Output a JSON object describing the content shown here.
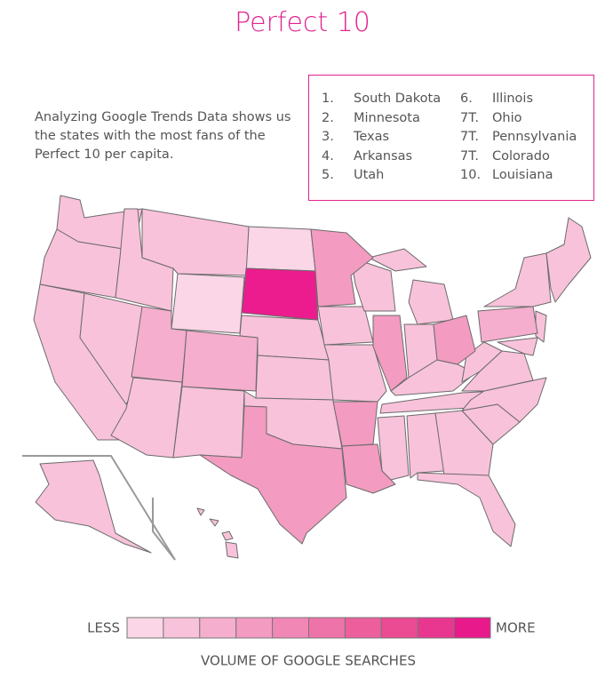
{
  "title": "Perfect 10",
  "description": "Analyzing Google Trends Data shows us the states with the most fans of the Perfect 10 per capita.",
  "ranking": [
    {
      "rank": "1.",
      "name": "South Dakota"
    },
    {
      "rank": "2.",
      "name": "Minnesota"
    },
    {
      "rank": "3.",
      "name": "Texas"
    },
    {
      "rank": "4.",
      "name": "Arkansas"
    },
    {
      "rank": "5.",
      "name": "Utah"
    },
    {
      "rank": "6.",
      "name": "Illinois"
    },
    {
      "rank": "7T.",
      "name": "Ohio"
    },
    {
      "rank": "7T.",
      "name": "Pennsylvania"
    },
    {
      "rank": "7T.",
      "name": "Colorado"
    },
    {
      "rank": "10.",
      "name": "Louisiana"
    }
  ],
  "legend": {
    "less": "LESS",
    "more": "MORE",
    "caption": "VOLUME OF GOOGLE SEARCHES",
    "colors": [
      "#fad6e6",
      "#f8c2da",
      "#f5aecd",
      "#f39bc1",
      "#f087b4",
      "#ee73a8",
      "#ec5f9c",
      "#ea4b92",
      "#e93790",
      "#e8198b"
    ]
  }
}
